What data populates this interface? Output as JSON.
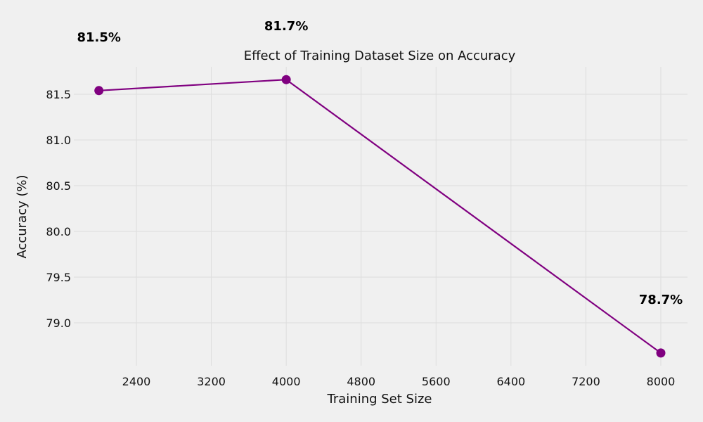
{
  "chart_data": {
    "type": "line",
    "title": "Effect of Training Dataset Size on Accuracy",
    "xlabel": "Training Set Size",
    "ylabel": "Accuracy (%)",
    "x_ticks": [
      2400,
      3200,
      4000,
      4800,
      5600,
      6400,
      7200,
      8000
    ],
    "y_ticks": [
      "79.0",
      "79.5",
      "80.0",
      "80.5",
      "81.0",
      "81.5"
    ],
    "xlim": [
      1500,
      8300
    ],
    "ylim": [
      78.5,
      81.8
    ],
    "grid": true,
    "series": [
      {
        "color": "#800080",
        "x": [
          2000,
          4000,
          8000
        ],
        "y": [
          81.54,
          81.66,
          78.67
        ],
        "labels": [
          "81.5%",
          "81.7%",
          "78.7%"
        ]
      }
    ]
  }
}
